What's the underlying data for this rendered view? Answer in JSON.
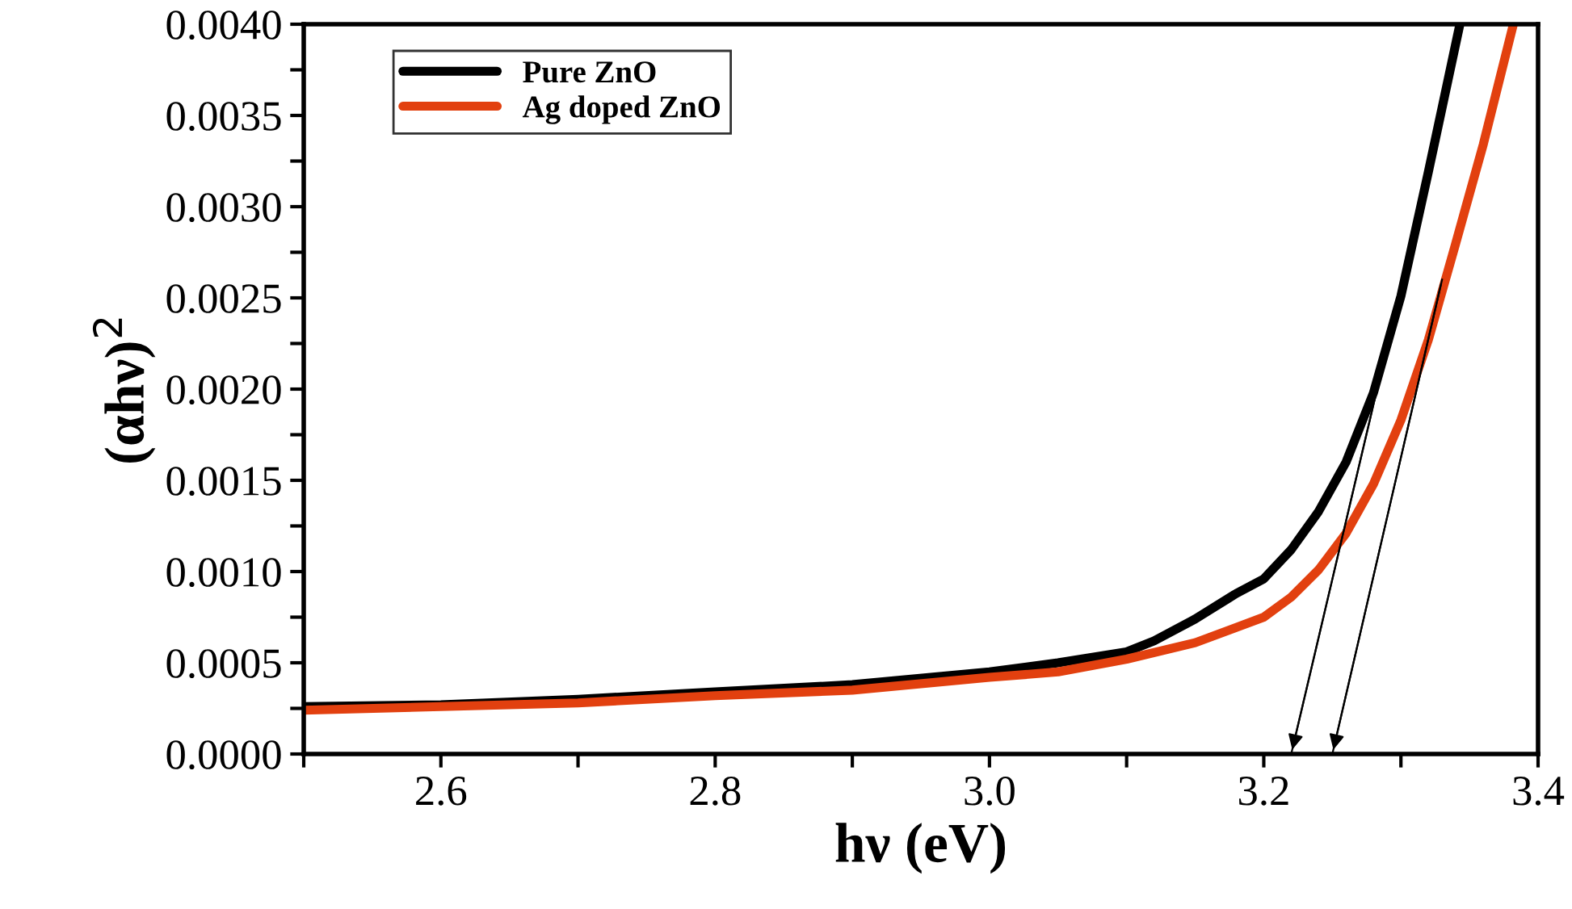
{
  "chart_data": {
    "type": "line",
    "xlabel": "hν (eV)",
    "ylabel": "(αhν)$^{2}$",
    "xlim": [
      2.5,
      3.4
    ],
    "ylim": [
      0,
      0.004
    ],
    "xticks": [
      {
        "value": 2.5,
        "label": null
      },
      {
        "value": 2.6,
        "label": "2.6"
      },
      {
        "value": 2.7,
        "label": null
      },
      {
        "value": 2.8,
        "label": "2.8"
      },
      {
        "value": 2.9,
        "label": null
      },
      {
        "value": 3.0,
        "label": "3.0"
      },
      {
        "value": 3.1,
        "label": null
      },
      {
        "value": 3.2,
        "label": "3.2"
      },
      {
        "value": 3.3,
        "label": null
      },
      {
        "value": 3.4,
        "label": "3.4"
      }
    ],
    "yticks": [
      {
        "value": 0,
        "label": "0.0000"
      },
      {
        "value": 0.00025,
        "label": null
      },
      {
        "value": 0.0005,
        "label": "0.0005"
      },
      {
        "value": 0.00075,
        "label": null
      },
      {
        "value": 0.001,
        "label": "0.0010"
      },
      {
        "value": 0.00125,
        "label": null
      },
      {
        "value": 0.0015,
        "label": "0.0015"
      },
      {
        "value": 0.00175,
        "label": null
      },
      {
        "value": 0.002,
        "label": "0.0020"
      },
      {
        "value": 0.00225,
        "label": null
      },
      {
        "value": 0.0025,
        "label": "0.0025"
      },
      {
        "value": 0.00275,
        "label": null
      },
      {
        "value": 0.003,
        "label": "0.0030"
      },
      {
        "value": 0.00325,
        "label": null
      },
      {
        "value": 0.0035,
        "label": "0.0035"
      },
      {
        "value": 0.00375,
        "label": null
      },
      {
        "value": 0.004,
        "label": "0.0040"
      }
    ],
    "grid": false,
    "legend": "top left",
    "marker": "none",
    "line_style": "solid",
    "series": [
      {
        "name": "Pure ZnO",
        "color": "#000000",
        "x": [
          2.5,
          2.6,
          2.7,
          2.8,
          2.9,
          3.0,
          3.05,
          3.1,
          3.12,
          3.15,
          3.18,
          3.2,
          3.22,
          3.24,
          3.26,
          3.28,
          3.3,
          3.32,
          3.343
        ],
        "values": [
          0.00026,
          0.00027,
          0.0003,
          0.00034,
          0.00038,
          0.00045,
          0.0005,
          0.00056,
          0.00062,
          0.00074,
          0.00088,
          0.00096,
          0.00112,
          0.00133,
          0.0016,
          0.00198,
          0.00251,
          0.00319,
          0.004
        ]
      },
      {
        "name": "Ag doped ZnO",
        "color": "#e2400f",
        "x": [
          2.5,
          2.6,
          2.7,
          2.8,
          2.9,
          3.0,
          3.05,
          3.1,
          3.15,
          3.2,
          3.22,
          3.24,
          3.26,
          3.28,
          3.3,
          3.32,
          3.34,
          3.36,
          3.382
        ],
        "values": [
          0.00024,
          0.00026,
          0.00028,
          0.00032,
          0.00035,
          0.00042,
          0.00045,
          0.00052,
          0.00061,
          0.00075,
          0.00086,
          0.00101,
          0.00121,
          0.00148,
          0.00183,
          0.00227,
          0.0028,
          0.00334,
          0.004
        ]
      },
      {
        "type": "line",
        "color": "#000000",
        "x": [
          3.282,
          3.22
        ],
        "values": [
          0.00198,
          0
        ]
      },
      {
        "type": "line",
        "color": "#000000",
        "x": [
          3.33,
          3.25
        ],
        "values": [
          0.0026,
          0
        ]
      }
    ]
  }
}
